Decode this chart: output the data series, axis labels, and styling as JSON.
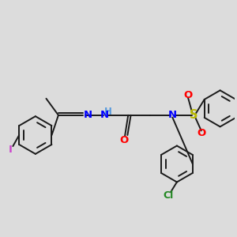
{
  "bg_color": "#dcdcdc",
  "bond_color": "#1a1a1a",
  "bond_width": 1.4,
  "atom_colors": {
    "I": "#cc44cc",
    "N": "#0000ff",
    "H": "#5599dd",
    "O": "#ff0000",
    "S": "#bbbb00",
    "Cl": "#228822",
    "C": "#1a1a1a"
  },
  "layout": {
    "xlim": [
      0.0,
      10.5
    ],
    "ylim": [
      -3.5,
      4.0
    ]
  }
}
